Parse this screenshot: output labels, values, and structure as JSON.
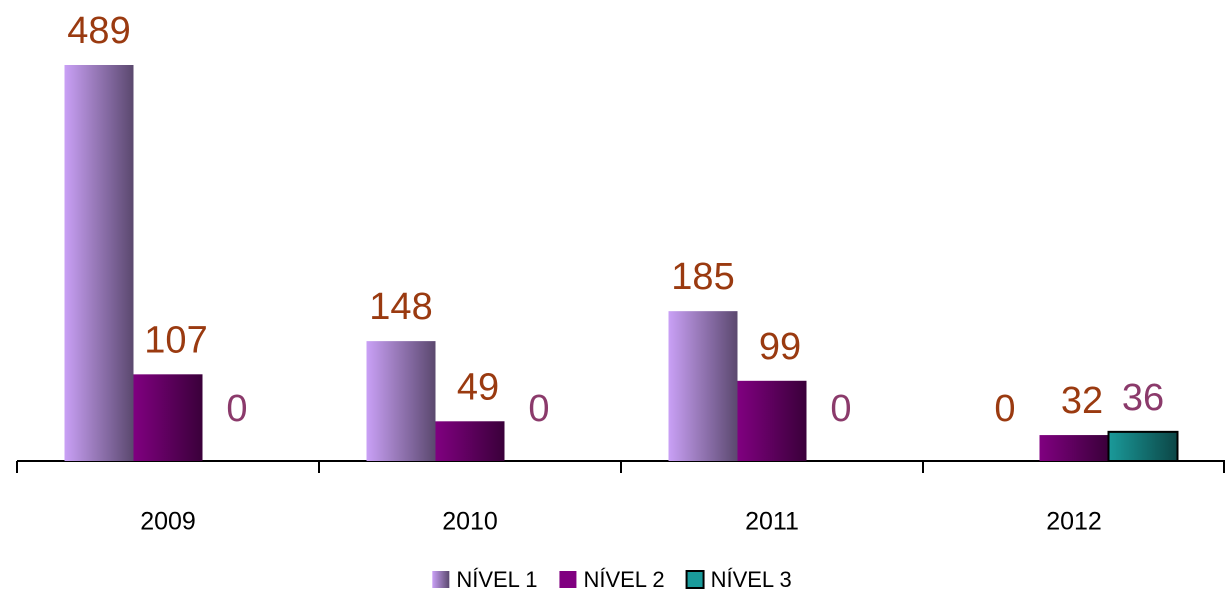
{
  "chart_data": {
    "type": "bar",
    "categories": [
      "2009",
      "2010",
      "2011",
      "2012"
    ],
    "series": [
      {
        "name": "NÍVEL 1",
        "color": "#c9a0f5",
        "label_color": "#9a3a10",
        "values": [
          489,
          148,
          185,
          0
        ]
      },
      {
        "name": "NÍVEL 2",
        "color": "#800080",
        "label_color": "#9a3a10",
        "values": [
          107,
          49,
          99,
          32
        ]
      },
      {
        "name": "NÍVEL 3",
        "color": "#1a9a9a",
        "label_color": "#8b3a6b",
        "values": [
          0,
          0,
          0,
          36
        ]
      }
    ],
    "legend": "bottom"
  }
}
